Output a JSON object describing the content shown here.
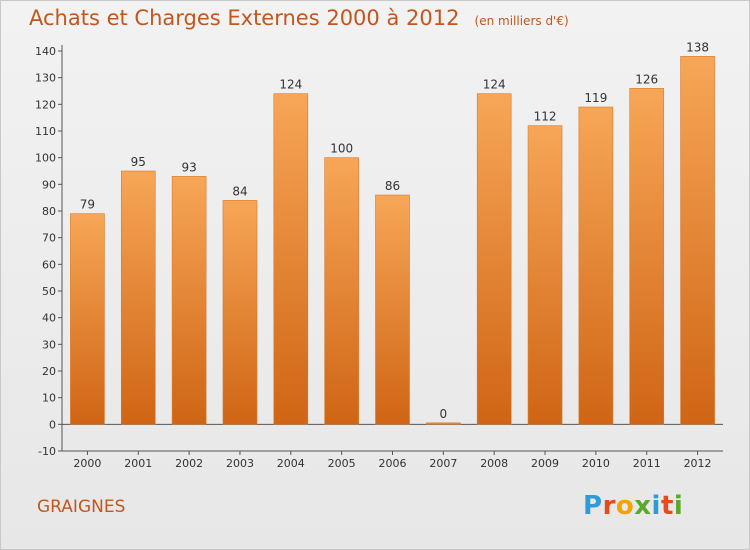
{
  "title": "Achats et Charges Externes 2000 à 2012",
  "unit_label": "(en milliers d'€)",
  "place_name": "GRAIGNES",
  "brand": {
    "letters": [
      "P",
      "r",
      "o",
      "x",
      "i",
      "t",
      "i"
    ],
    "colors": [
      "#2f9bd7",
      "#e8491d",
      "#f0a500",
      "#5aa92b",
      "#2f9bd7",
      "#e8491d",
      "#5aa92b"
    ]
  },
  "colors": {
    "bar_top": "#f7a657",
    "bar_bottom": "#cf6515",
    "title": "#c2571e"
  },
  "chart_data": {
    "type": "bar",
    "categories": [
      "2000",
      "2001",
      "2002",
      "2003",
      "2004",
      "2005",
      "2006",
      "2007",
      "2008",
      "2009",
      "2010",
      "2011",
      "2012"
    ],
    "values": [
      79,
      95,
      93,
      84,
      124,
      100,
      86,
      0,
      124,
      112,
      119,
      126,
      138
    ],
    "title": "Achats et Charges Externes 2000 à 2012",
    "ylabel": "",
    "xlabel": "",
    "ylim": [
      -10,
      140
    ],
    "yticks": [
      -10,
      0,
      10,
      20,
      30,
      40,
      50,
      60,
      70,
      80,
      90,
      100,
      110,
      120,
      130,
      140
    ],
    "grid": false,
    "data_labels": true
  }
}
